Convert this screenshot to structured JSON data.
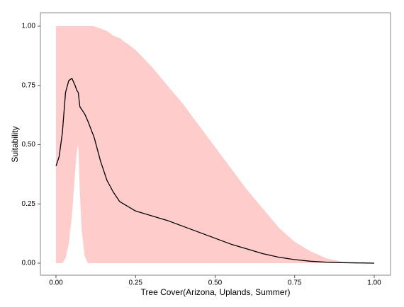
{
  "chart_data": {
    "type": "line",
    "xlabel": "Tree Cover(Arizona, Uplands, Summer)",
    "ylabel": "Suitability",
    "x": [
      0,
      0.01,
      0.02,
      0.03,
      0.04,
      0.05,
      0.06,
      0.065,
      0.07,
      0.075,
      0.08,
      0.09,
      0.1,
      0.12,
      0.14,
      0.16,
      0.18,
      0.2,
      0.25,
      0.3,
      0.35,
      0.4,
      0.45,
      0.5,
      0.55,
      0.6,
      0.65,
      0.7,
      0.75,
      0.8,
      0.85,
      0.9,
      0.95,
      1.0
    ],
    "line": {
      "color": "#000000",
      "values": [
        0.41,
        0.45,
        0.55,
        0.72,
        0.77,
        0.78,
        0.75,
        0.73,
        0.72,
        0.66,
        0.65,
        0.63,
        0.6,
        0.53,
        0.43,
        0.35,
        0.3,
        0.26,
        0.22,
        0.2,
        0.18,
        0.155,
        0.13,
        0.105,
        0.08,
        0.06,
        0.04,
        0.025,
        0.015,
        0.008,
        0.004,
        0.002,
        0.001,
        0
      ]
    },
    "band": {
      "color": "#ffcccc",
      "lower": [
        0,
        0,
        0,
        0.02,
        0.08,
        0.2,
        0.38,
        0.47,
        0.5,
        0.3,
        0.15,
        0.03,
        0,
        0,
        0,
        0,
        0,
        0,
        0,
        0,
        0,
        0,
        0,
        0,
        0,
        0,
        0,
        0,
        0,
        0,
        0,
        0,
        0,
        0
      ],
      "upper": [
        1,
        1,
        1,
        1,
        1,
        1,
        1,
        1,
        1,
        1,
        1,
        1,
        1,
        1,
        0.99,
        0.98,
        0.96,
        0.95,
        0.9,
        0.83,
        0.75,
        0.67,
        0.58,
        0.49,
        0.4,
        0.31,
        0.23,
        0.15,
        0.09,
        0.05,
        0.02,
        0.005,
        0,
        0
      ]
    },
    "xlim": [
      0,
      1
    ],
    "ylim": [
      0,
      1
    ],
    "xticks": [
      {
        "value": 0,
        "label": "0.00"
      },
      {
        "value": 0.25,
        "label": "0.25"
      },
      {
        "value": 0.5,
        "label": "0.50"
      },
      {
        "value": 0.75,
        "label": "0.75"
      },
      {
        "value": 1,
        "label": "1.00"
      }
    ],
    "yticks": [
      {
        "value": 0,
        "label": "0.00"
      },
      {
        "value": 0.25,
        "label": "0.25"
      },
      {
        "value": 0.5,
        "label": "0.50"
      },
      {
        "value": 0.75,
        "label": "0.75"
      },
      {
        "value": 1,
        "label": "1.00"
      }
    ]
  }
}
